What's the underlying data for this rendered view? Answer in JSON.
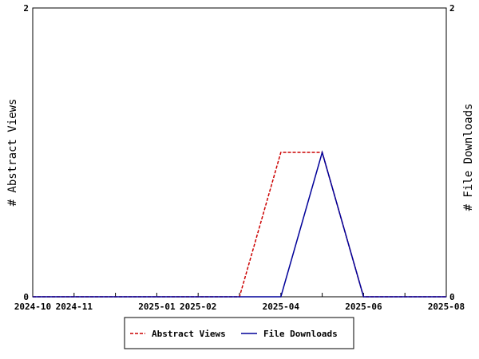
{
  "chart_data": {
    "type": "line",
    "x_ticks": [
      "2024-10",
      "2024-11",
      "2025-01",
      "2025-02",
      "2025-04",
      "2025-06",
      "2025-08"
    ],
    "x": [
      "2024-10",
      "2024-11",
      "2024-12",
      "2025-01",
      "2025-02",
      "2025-03",
      "2025-04",
      "2025-05",
      "2025-06",
      "2025-07",
      "2025-08"
    ],
    "xlim": [
      "2024-10",
      "2025-08"
    ],
    "ylabel": "# Abstract Views",
    "y2label": "# File Downloads",
    "ylim": [
      0,
      2
    ],
    "y2lim": [
      0,
      2
    ],
    "y_ticks": [
      "0",
      "2"
    ],
    "y2_ticks": [
      "0",
      "2"
    ],
    "grid": false,
    "legend_position": "bottom",
    "series": [
      {
        "name": "Abstract Views",
        "axis": "left",
        "color": "#cc0000",
        "style": "dashed",
        "values": [
          0,
          0,
          0,
          0,
          0,
          0,
          1,
          1,
          0,
          0,
          0
        ]
      },
      {
        "name": "File Downloads",
        "axis": "right",
        "color": "#000099",
        "style": "solid",
        "values": [
          0,
          0,
          0,
          0,
          0,
          0,
          0,
          1,
          0,
          0,
          0
        ]
      }
    ]
  }
}
